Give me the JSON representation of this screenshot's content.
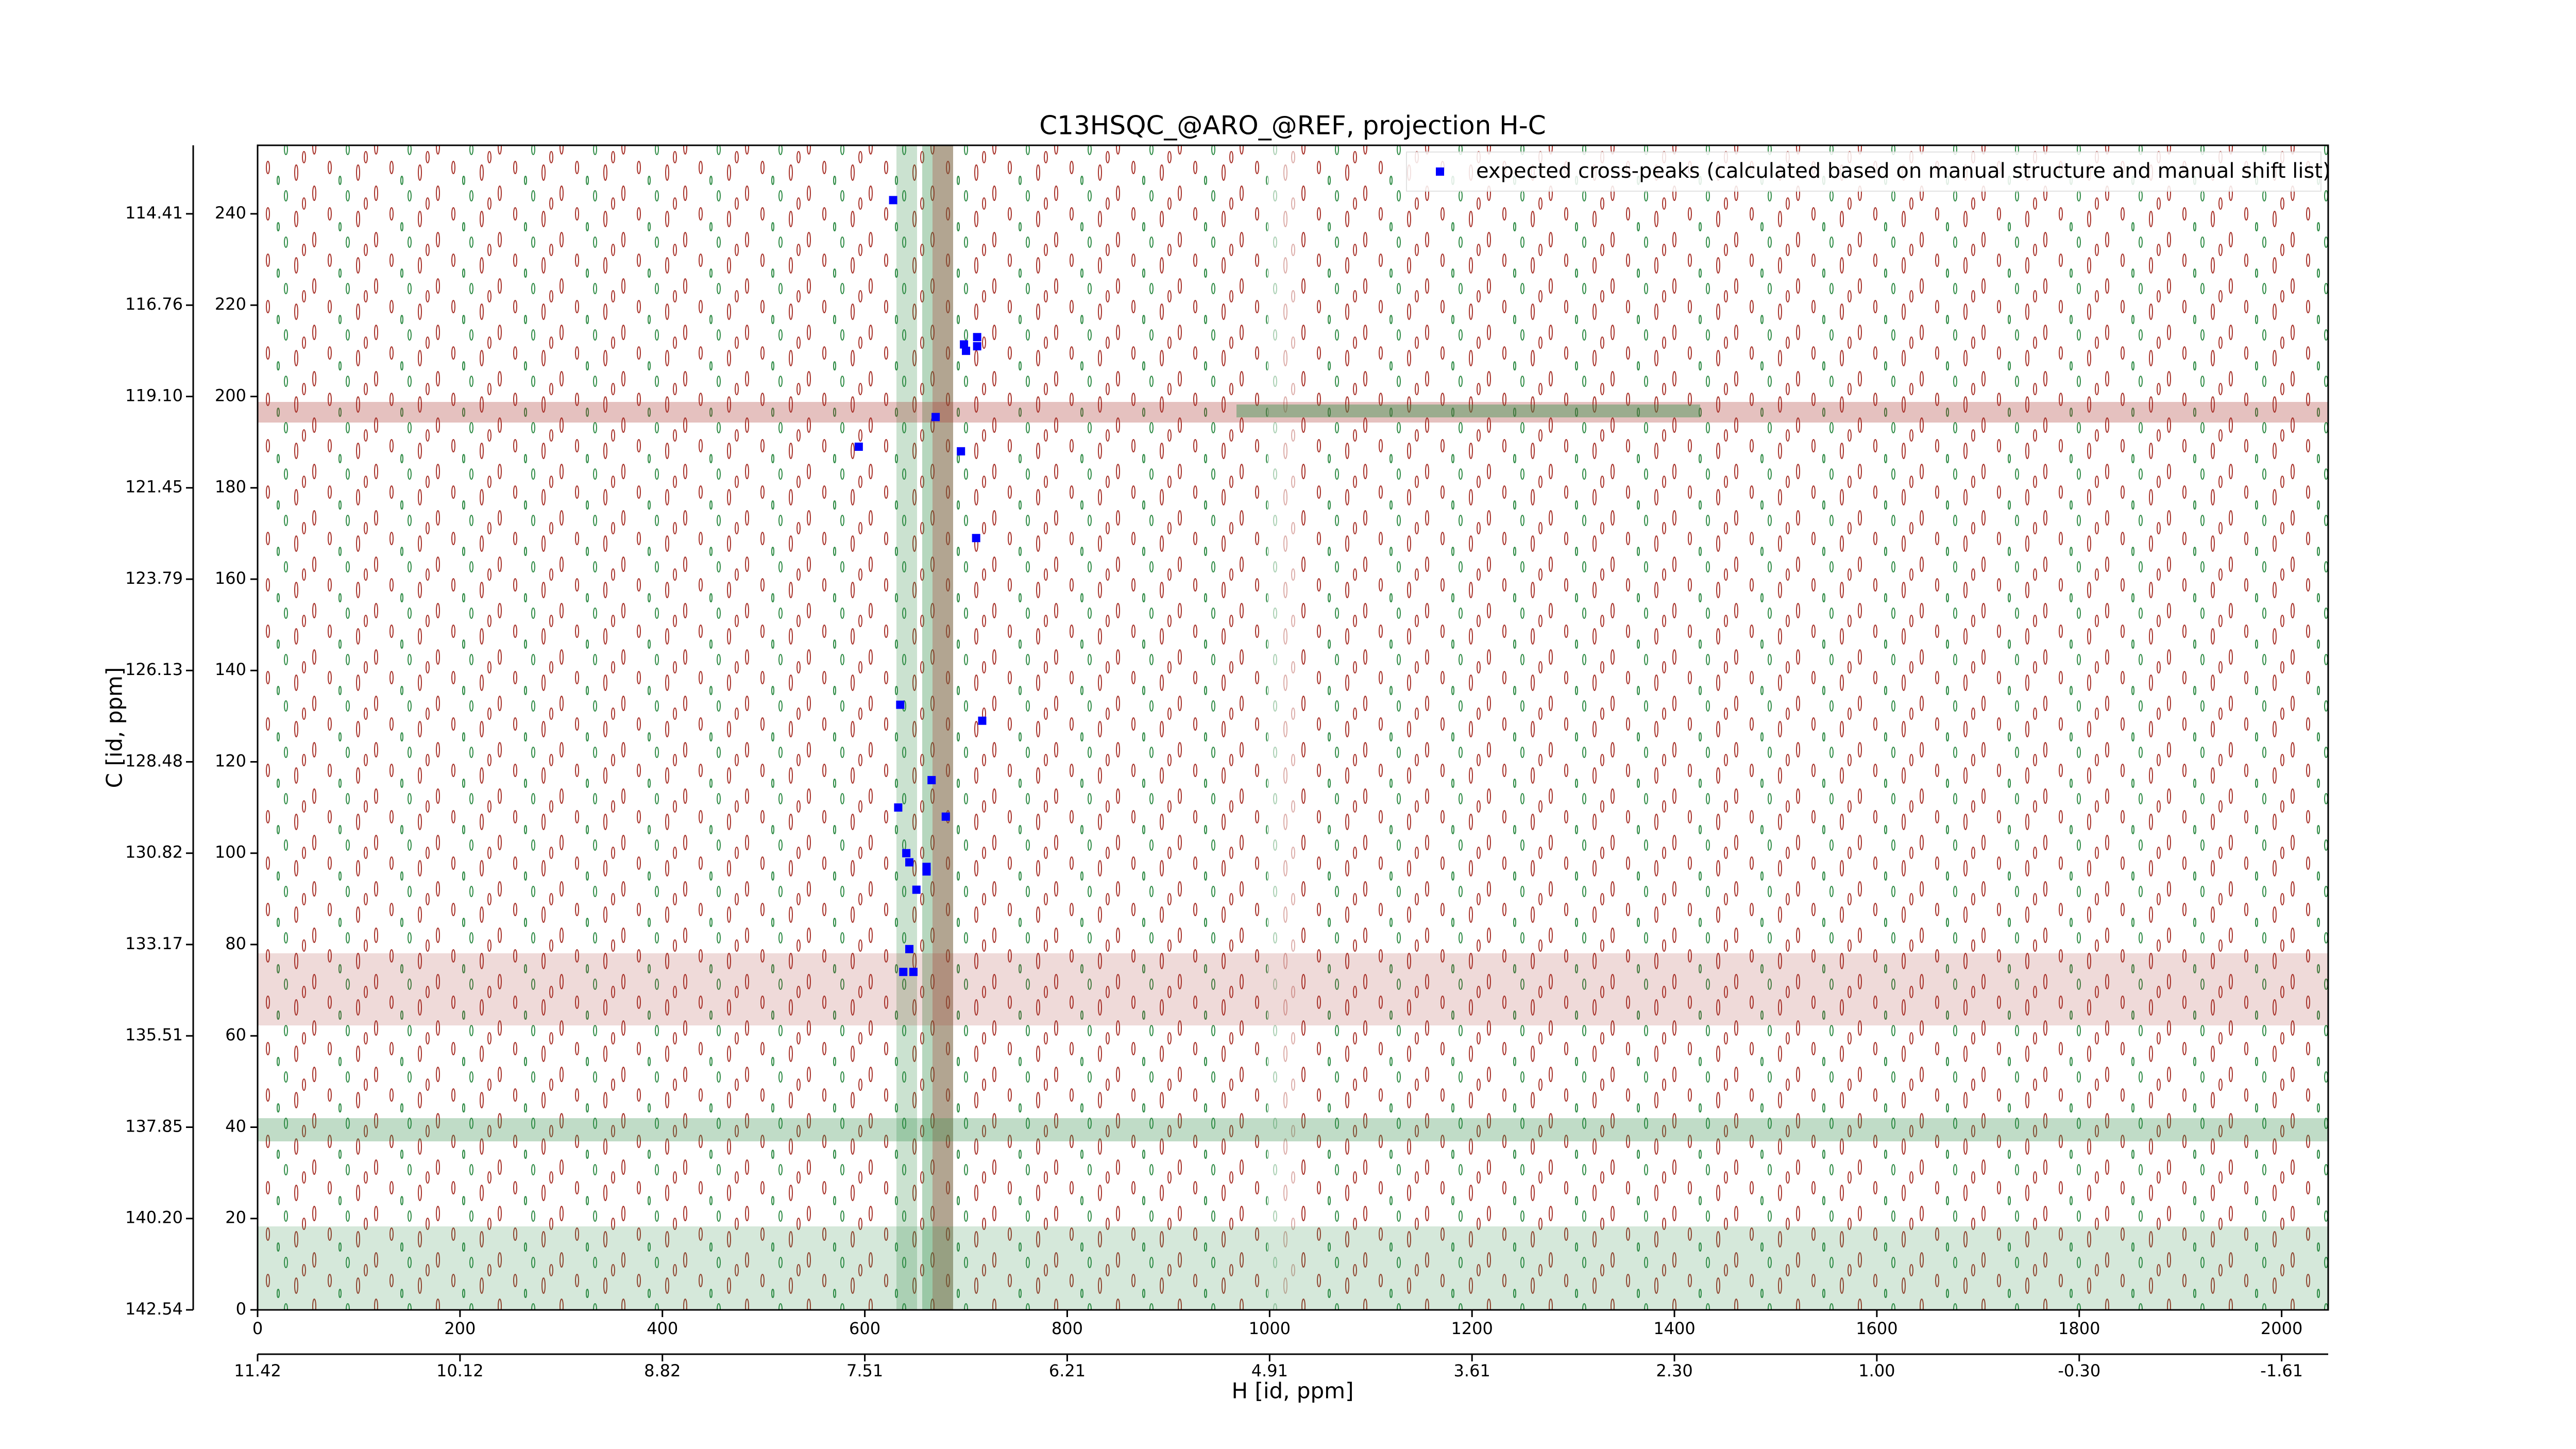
{
  "chart_data": {
    "type": "scatter",
    "title": "C13HSQC_@ARO_@REF, projection H-C",
    "xlabel": "H [id, ppm]",
    "ylabel": "C [id, ppm]",
    "xlim": [
      0,
      2046
    ],
    "ylim": [
      0,
      255
    ],
    "xticks": [
      0,
      200,
      400,
      600,
      800,
      1000,
      1200,
      1400,
      1600,
      1800,
      2000
    ],
    "yticks": [
      0,
      20,
      40,
      60,
      80,
      100,
      120,
      140,
      160,
      180,
      200,
      220,
      240
    ],
    "x2ticks": [
      {
        "value": 0,
        "label": "11.42"
      },
      {
        "value": 200,
        "label": "10.12"
      },
      {
        "value": 400,
        "label": "8.82"
      },
      {
        "value": 600,
        "label": "7.51"
      },
      {
        "value": 800,
        "label": "6.21"
      },
      {
        "value": 1000,
        "label": "4.91"
      },
      {
        "value": 1200,
        "label": "3.61"
      },
      {
        "value": 1400,
        "label": "2.30"
      },
      {
        "value": 1600,
        "label": "1.00"
      },
      {
        "value": 1800,
        "label": "-0.30"
      },
      {
        "value": 2000,
        "label": "-1.61"
      }
    ],
    "y2ticks": [
      {
        "value": 0,
        "label": "142.54"
      },
      {
        "value": 20,
        "label": "140.20"
      },
      {
        "value": 40,
        "label": "137.85"
      },
      {
        "value": 60,
        "label": "135.51"
      },
      {
        "value": 80,
        "label": "133.17"
      },
      {
        "value": 100,
        "label": "130.82"
      },
      {
        "value": 120,
        "label": "128.48"
      },
      {
        "value": 140,
        "label": "126.13"
      },
      {
        "value": 160,
        "label": "123.79"
      },
      {
        "value": 180,
        "label": "121.45"
      },
      {
        "value": 200,
        "label": "119.10"
      },
      {
        "value": 220,
        "label": "116.76"
      },
      {
        "value": 240,
        "label": "114.41"
      }
    ],
    "legend": "upper right",
    "series": [
      {
        "name": "expected cross-peaks (calculated based on manual structure and manual shift list)",
        "color": "#0000ff",
        "x": [
          628,
          698,
          700,
          711,
          711,
          670,
          594,
          695,
          710,
          635,
          716,
          666,
          633,
          680,
          641,
          644,
          661,
          661,
          651,
          644,
          638,
          648
        ],
        "values": [
          243,
          211.4,
          210,
          213,
          211,
          195.5,
          189,
          188,
          169,
          132.5,
          129,
          116,
          110,
          108,
          100,
          98,
          97,
          96,
          92,
          79,
          74,
          74
        ]
      }
    ]
  }
}
